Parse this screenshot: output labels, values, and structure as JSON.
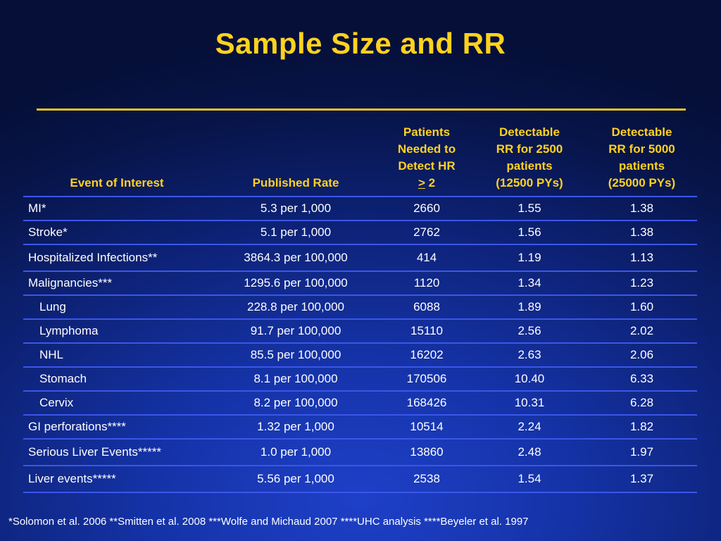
{
  "slide": {
    "title": "Sample Size and RR",
    "footnote": "*Solomon et al. 2006 **Smitten et al. 2008 ***Wolfe and Michaud 2007 ****UHC analysis ****Beyeler et al. 1997"
  },
  "table": {
    "headers": {
      "event": "Event of Interest",
      "rate": "Published Rate",
      "patients_l1": "Patients",
      "patients_l2": "Needed to",
      "patients_l3": "Detect HR",
      "patients_ge": ">",
      "patients_val": " 2",
      "rr2500_l1": "Detectable",
      "rr2500_l2": "RR for 2500",
      "rr2500_l3": "patients",
      "rr2500_l4": "(12500 PYs)",
      "rr5000_l1": "Detectable",
      "rr5000_l2": "RR for 5000",
      "rr5000_l3": "patients",
      "rr5000_l4": "(25000 PYs)"
    },
    "rows": [
      {
        "event": "MI*",
        "rate": "5.3 per 1,000",
        "patients": "2660",
        "rr2500": "1.55",
        "rr5000": "1.38"
      },
      {
        "event": "Stroke*",
        "rate": "5.1 per 1,000",
        "patients": "2762",
        "rr2500": "1.56",
        "rr5000": "1.38"
      },
      {
        "event": "Hospitalized Infections**",
        "rate": "3864.3 per 100,000",
        "patients": "414",
        "rr2500": "1.19",
        "rr5000": "1.13"
      },
      {
        "event": "Malignancies***",
        "rate": "1295.6 per 100,000",
        "patients": "1120",
        "rr2500": "1.34",
        "rr5000": "1.23"
      },
      {
        "event": "Lung",
        "rate": "228.8 per 100,000",
        "patients": "6088",
        "rr2500": "1.89",
        "rr5000": "1.60"
      },
      {
        "event": "Lymphoma",
        "rate": "91.7 per 100,000",
        "patients": "15110",
        "rr2500": "2.56",
        "rr5000": "2.02"
      },
      {
        "event": "NHL",
        "rate": "85.5 per 100,000",
        "patients": "16202",
        "rr2500": "2.63",
        "rr5000": "2.06"
      },
      {
        "event": "Stomach",
        "rate": "8.1 per 100,000",
        "patients": "170506",
        "rr2500": "10.40",
        "rr5000": "6.33"
      },
      {
        "event": "Cervix",
        "rate": "8.2 per 100,000",
        "patients": "168426",
        "rr2500": "10.31",
        "rr5000": "6.28"
      },
      {
        "event": "GI perforations****",
        "rate": "1.32 per 1,000",
        "patients": "10514",
        "rr2500": "2.24",
        "rr5000": "1.82"
      },
      {
        "event": "Serious Liver Events*****",
        "rate": "1.0 per 1,000",
        "patients": "13860",
        "rr2500": "2.48",
        "rr5000": "1.97"
      },
      {
        "event": "Liver events*****",
        "rate": "5.56 per 1,000",
        "patients": "2538",
        "rr2500": "1.54",
        "rr5000": "1.37"
      }
    ]
  },
  "colors": {
    "title": "#ffd21e",
    "header_text": "#ffd21e",
    "row_rule": "#3c56e8",
    "title_rule": "#e8c21c",
    "background": "#0d2276"
  }
}
